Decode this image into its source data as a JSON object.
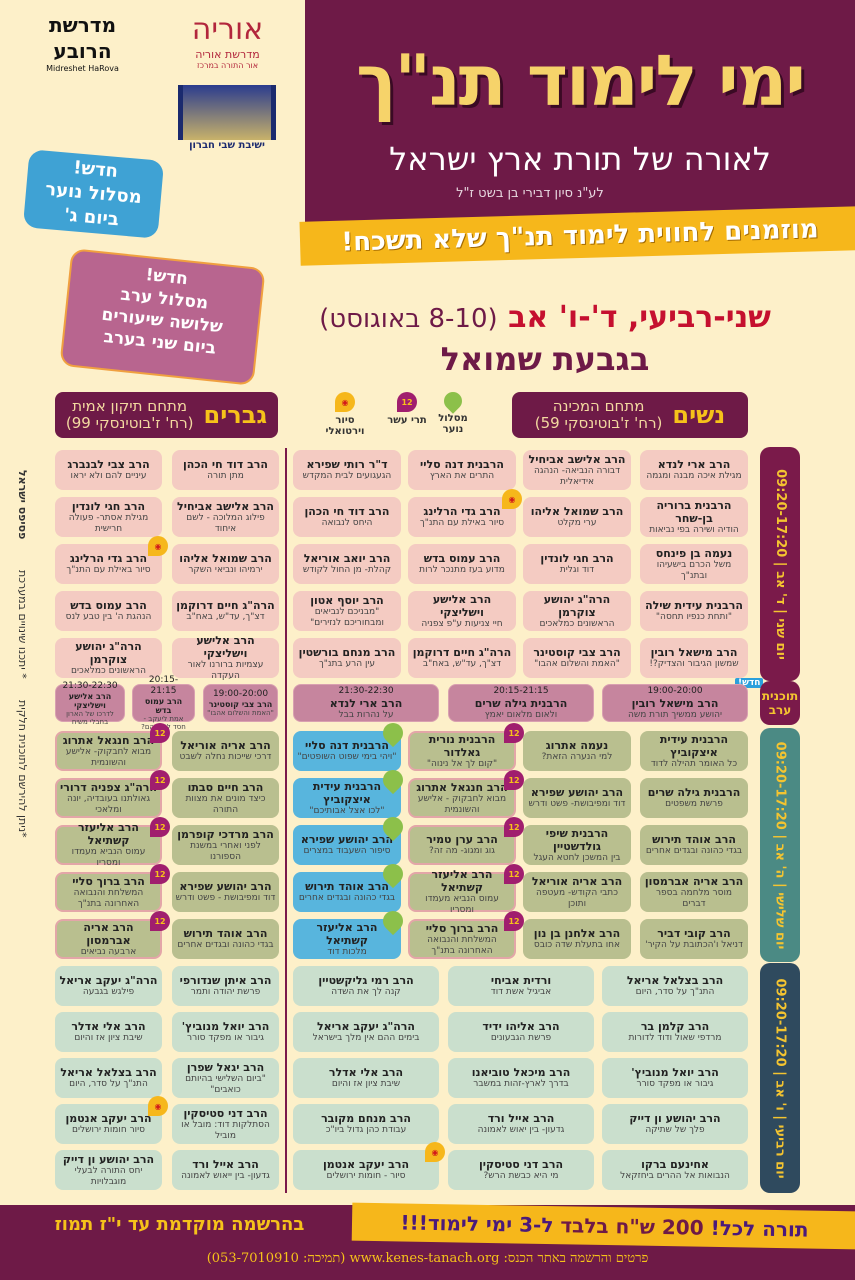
{
  "logos": {
    "harova": "מדרשת הרובע",
    "harova_en": "Midreshet HaRova",
    "oriya": "אוריה",
    "oriya_sub": "מדרשת אוריה",
    "oriya_sub2": "אור התורה במרכז",
    "hevron": "ישיבת שבי חברון"
  },
  "header": {
    "title": "ימי לימוד תנ\"ך",
    "subtitle": "לאורה של תורת ארץ ישראל",
    "memorial": "לע\"נ סיון דבירי בן בשט ז\"ל",
    "banner": "מוזמנים לחווית לימוד תנ\"ך שלא תשכח!",
    "date_main": "שני-רביעי, ד'-ו' אב",
    "date_greg": "(8-10 באוגוסט)",
    "place": "בגבעת שמואל"
  },
  "badges": {
    "youth": [
      "חדש!",
      "מסלול נוער",
      "ביום ג'"
    ],
    "evening": [
      "חדש!",
      "מסלול ערב",
      "שלושה שיעורים",
      "ביום שני בערב"
    ]
  },
  "sections": {
    "women": {
      "title": "נשים",
      "venue": "מתחם המכינה",
      "address": "(רח' ז'בוטינסקי 59)"
    },
    "men": {
      "title": "גברים",
      "venue": "מתחם תיקון אמית",
      "address": "(רח' ז'בוטינסקי 99)"
    }
  },
  "legend": {
    "youth": "מסלול נוער",
    "twelve": "תרי עשר",
    "twelve_icon": "12",
    "tour": "סיור וירטואלי"
  },
  "side_notes": {
    "mosaic": "פסיפס ישראל",
    "changes": "* יתכנו שינויים במערכת",
    "partial": "*ניתן להירשם לתוכנית חלקית"
  },
  "new_tag": "חדש!",
  "colors": {
    "purple": "#6e1a47",
    "yellow": "#f6b71b",
    "day1": "#7a1a4a",
    "day2": "#4b8a84",
    "day3": "#2f4a5e"
  },
  "days": [
    {
      "label": "יום שני | ד' אב | 09:20-17:20",
      "women": [
        [
          [
            "הרב ארי לנדא",
            "מגילת איכה מבנה ומגמה"
          ],
          [
            "הרב אלישב אביחיל",
            "דבורה הנביאה- הנהגה אידיאלית"
          ],
          [
            "הרבנית דנה סליי",
            "התרים את הארץ"
          ],
          [
            "ד\"ר רותי שפירא",
            "הגעגועים לבית המקדש"
          ]
        ],
        [
          [
            "הרבנית ברוריה בן-שחר",
            "הודיה ושירה בפי נביאות"
          ],
          [
            "הרב שמואל אליהו",
            "ערי מקלט"
          ],
          [
            "הרב גדי הרלינג",
            "סיור באילת עם התנ\"ך",
            "tour"
          ],
          [
            "הרב דוד חי הכהן",
            "היחס לנבואה"
          ]
        ],
        [
          [
            "נעמה בן פינחס",
            "משל הכרם בישעיהו ובתנ\"ך"
          ],
          [
            "הרב חגי לונדין",
            "דוד וגלית"
          ],
          [
            "הרב עמוס בדש",
            "מדוע בעז מתנכר לרות"
          ],
          [
            "הרב יואב אוריאל",
            "קהלת- מן החול לקודש"
          ]
        ],
        [
          [
            "הרבנית עידית שילה",
            "\"ותחת כנפיו תחסה\""
          ],
          [
            "הרה\"ג יהושע צוקרמן",
            "הראשונים כמלאכים"
          ],
          [
            "הרב אלישע וישליצקי",
            "חיי צניעות ע\"פ צפניה"
          ],
          [
            "הרב יוסף אטון",
            "\"מבניכם לנביאים ומבחוריכם לנזירים\""
          ]
        ],
        [
          [
            "הרב מישאל רובין",
            "שמשון הגיבור והצדיק?!"
          ],
          [
            "הרב צבי קוסטינר",
            "\"האמת והשלום אהבו\""
          ],
          [
            "הרה\"ג חיים דרוקמן",
            "דצ\"ך, עד\"ש, באח\"ב"
          ],
          [
            "הרב מנחם בורשטין",
            "עין הרע בתנ\"ך"
          ]
        ]
      ],
      "men": [
        [
          [
            "הרב דוד חי הכהן",
            "מתן תורה"
          ],
          [
            "הרב צבי לבנברג",
            "עיניים להם ולא יראו"
          ]
        ],
        [
          [
            "הרב אלישב אביחיל",
            "פילוג המלוכה - לשם איחוד"
          ],
          [
            "הרב חגי לונדין",
            "מגילת אסתר- פעולה חרישית"
          ]
        ],
        [
          [
            "הרב שמואל אליהו",
            "ירמיהו ונביאי השקר"
          ],
          [
            "הרב גדי הרלינג",
            "סיור באילת עם התנ\"ך",
            "tour"
          ]
        ],
        [
          [
            "הרה\"ג חיים דרוקמן",
            "דצ\"ך, עד\"ש, באח\"ב"
          ],
          [
            "הרב עמוס בדש",
            "הנהגת ה' בין טבע לנס"
          ]
        ],
        [
          [
            "הרב אלישע וישליצקי",
            "עצמיות ברורנו לאור העקדה"
          ],
          [
            "הרה\"ג יהושע צוקרמן",
            "הראשונים כמלאכים"
          ]
        ]
      ]
    },
    {
      "label": "תוכנית ערב",
      "women": [
        [
          [
            "הרב מישאל רובין",
            "יהושע ממשיך תורת משה",
            "19:00-20:00"
          ],
          [
            "הרבנית גילה שרים",
            "ולאום מלאום יאמץ",
            "20:15-21:15"
          ],
          [
            "הרב ארי לנדא",
            "על נהרות בבל",
            "21:30-22:30"
          ]
        ]
      ],
      "men": [
        [
          [
            "הרב צבי קוסטינר",
            "\"האמת והשלום אהבו\"",
            "19:00-20:00"
          ],
          [
            "הרב עמוס בדש",
            "אמת ליעקב - חסד לאברהם?",
            "20:15-21:15"
          ],
          [
            "הרב אלישע וישליצקי",
            "לדרכו של הארון בחבלי משיח",
            "21:30-22:30"
          ]
        ]
      ]
    },
    {
      "label": "יום שלישי | ה' אב | 09:20-17:20",
      "women": [
        [
          [
            "הרבנית עידית איצקוביץ",
            "כל האומר תהילה לדוד"
          ],
          [
            "נעמה אתרוג",
            "למי הנערה הזאת?"
          ],
          [
            "הרבנית נורית גאלדור",
            "\"קום לך אל נינוה\"",
            "p12"
          ],
          [
            "הרבנית דנה סליי",
            "\"ויהי בימי שפוט השופטים\"",
            "youth"
          ]
        ],
        [
          [
            "הרבנית גילה שרים",
            "פרשת משפטים"
          ],
          [
            "הרב יהושע שפירא",
            "דוד ומפיבושת- פשט ודרש"
          ],
          [
            "הרב חנגאל אתרוג",
            "מבוא לחבקוק - אלישע והשונמית",
            "p12"
          ],
          [
            "הרבנית עידית איצקוביץ",
            "\"לכו אצל אבותיכם\"",
            "youth"
          ]
        ],
        [
          [
            "הרב אוהד תירוש",
            "בגדי כהונה ובגדים אחרים"
          ],
          [
            "הרבנית שיפי גולדשטיין",
            "בין המשכן לחטא העגל"
          ],
          [
            "הרב ערן טמיר",
            "גוג ומגוג- מה זה?",
            "p12"
          ],
          [
            "הרב יהושע שפירא",
            "סיפור השעבוד במצרים",
            "youth"
          ]
        ],
        [
          [
            "הרב אריה אברמסון",
            "מוסר מלחמה בספר דברים"
          ],
          [
            "הרב אריה אוריאל",
            "כתבי הקודש- מעטפה ותוכן"
          ],
          [
            "הרב אליעזר קשתיאל",
            "עמוס הנביא מעמדו ומסריו",
            "p12"
          ],
          [
            "הרב אוהד תירוש",
            "בגדי כהונה ובגדים אחרים",
            "youth"
          ]
        ],
        [
          [
            "הרב קובי דביר",
            "דניאל ו'הכתובת על הקיר'"
          ],
          [
            "הרב אלחנן בן נון",
            "אחו בתעלת שדה כובס"
          ],
          [
            "הרב ברוך סליי",
            "המשלחת והנבואה האחרונה בתנ\"ך",
            "p12"
          ],
          [
            "הרב אליעזר קשתיאל",
            "מלכות דוד",
            "youth"
          ]
        ]
      ],
      "men": [
        [
          [
            "הרב אריה אוריאל",
            "דרכי שייכות נחלה לשבט"
          ],
          [
            "הרב חנגאל אתרוג",
            "מבוא לחבקוק- אלישע והשונמית",
            "p12"
          ]
        ],
        [
          [
            "הרב חיים סבתו",
            "כיצד מונים את מצוות התורה"
          ],
          [
            "הרה\"ג צפניה דרורי",
            "גאולתנו בעובדיה, יונה ומלאכי",
            "p12"
          ]
        ],
        [
          [
            "הרב מרדכי קופרמן",
            "לפני ואחרי במשנת הספורנו"
          ],
          [
            "הרב אליעזר קשתיאל",
            "עמוס הנביא מעמדו ומסריו",
            "p12"
          ]
        ],
        [
          [
            "הרב יהושע שפירא",
            "דוד ומפיבושת - פשט ודרש"
          ],
          [
            "הרב ברוך סליי",
            "המשלחת והנבואה האחרונה בתנ\"ך",
            "p12"
          ]
        ],
        [
          [
            "הרב אוהד תירוש",
            "בגדי כהונה ובגדים אחרים"
          ],
          [
            "הרב אריה אברמסון",
            "ארבעה נביאים",
            "p12"
          ]
        ]
      ]
    },
    {
      "label": "יום רביעי | ו' אב | 09:20-17:20",
      "women": [
        [
          [
            "הרב בצלאל אריאל",
            "התנ\"ך על סדר, היום"
          ],
          [
            "ורדית אביחי",
            "אביגיל אשת דוד"
          ],
          [
            "הרב רמי גליקשטיין",
            "קנה לך את השדה"
          ]
        ],
        [
          [
            "הרב קלמן בר",
            "מרדפי שאול ודוד לדורות"
          ],
          [
            "הרב אליהו ידיד",
            "פרשת הגבעונים"
          ],
          [
            "הרה\"ג יעקב אריאל",
            "בימים ההם אין מלך בישראל"
          ]
        ],
        [
          [
            "הרב יואל מנוביץ'",
            "גיבור או מפקד סורר"
          ],
          [
            "הרב מיכאל טוביאנו",
            "בדרך לארץ-זהות במשבר"
          ],
          [
            "הרב אלי אדלר",
            "שיבת ציון אז והיום"
          ]
        ],
        [
          [
            "הרב יהושע ון דייק",
            "פלך של שתיקה"
          ],
          [
            "הרב אייל ורד",
            "גדעון- בין יאוש לאמונה"
          ],
          [
            "הרב מנחם מקובר",
            "עבודת כהן גדול ביו\"כ"
          ]
        ],
        [
          [
            "אחינעם ברקו",
            "הנבואות אל ההרים ביחזקאל"
          ],
          [
            "הרב דני סטיסקין",
            "מי היא כבשת הרש?"
          ],
          [
            "הרב יעקב אנטמן",
            "סיור - חומות ירושלים",
            "tour"
          ]
        ]
      ],
      "men": [
        [
          [
            "הרב איתן שנדורפי",
            "פרשת יהודה ותמר"
          ],
          [
            "הרה\"ג יעקב אריאל",
            "פילגש בגבעה"
          ]
        ],
        [
          [
            "הרב יואל מנוביץ'",
            "גיבור או מפקד סורר"
          ],
          [
            "הרב אלי אדלר",
            "שיבת ציון אז והיום"
          ]
        ],
        [
          [
            "הרב יגאל שפרן",
            "\"ביום השלישי בהיותם כואבים\""
          ],
          [
            "הרב בצלאל אריאל",
            "התנ\"ך על סדר, היום"
          ]
        ],
        [
          [
            "הרב דני סטיסקין",
            "הסתלקות דוד: מובל או מוביל"
          ],
          [
            "הרב יעקב אנטמן",
            "סיור חומות ירושלים",
            "tour"
          ]
        ],
        [
          [
            "הרב אייל ורד",
            "גדעון- בין ייאוש לאמונה"
          ],
          [
            "הרב יהושע ון דייק",
            "יחס התורה לבעלי מוגבלויות"
          ]
        ]
      ]
    }
  ],
  "footer": {
    "price_a": "תורה לכל!",
    "price_b": "200 ש\"ח בלבד",
    "price_c": "ל-3 ימי לימוד!!!",
    "early": "בהרשמה מוקדמת עד י\"ז תמוז",
    "details": "פרטים והרשמה באתר הכנס: www.kenes-tanach.org (תמיכה: 053-7010910)"
  }
}
